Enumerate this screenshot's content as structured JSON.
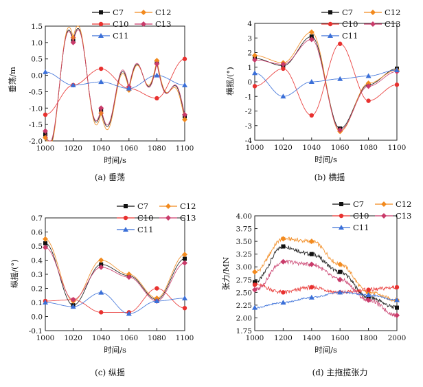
{
  "figure": {
    "captions": [
      "(a) 垂荡",
      "(b) 横摇",
      "(c) 纵摇",
      "(d) 主拖揽张力"
    ]
  },
  "series_styles": [
    {
      "name": "C7",
      "color": "#111111",
      "marker": "square"
    },
    {
      "name": "C12",
      "color": "#f28a1e",
      "marker": "diamond"
    },
    {
      "name": "C10",
      "color": "#e8312f",
      "marker": "circle"
    },
    {
      "name": "C13",
      "color": "#c93b6a",
      "marker": "diamond"
    },
    {
      "name": "C11",
      "color": "#3a6fd8",
      "marker": "triangle"
    }
  ],
  "chart_data": [
    {
      "type": "line",
      "caption": "(a) 垂荡",
      "xlabel": "时间/s",
      "ylabel": "垂荡/m",
      "xlim": [
        1000,
        1100
      ],
      "ylim": [
        -2.0,
        1.5
      ],
      "xticks": [
        1000,
        1020,
        1040,
        1060,
        1080,
        1100
      ],
      "yticks": [
        -2.0,
        -1.5,
        -1.0,
        -0.5,
        0.0,
        0.5,
        1.0,
        1.5
      ],
      "ytick_labels": [
        "-2.0",
        "-1.5",
        "-1.0",
        "-0.5",
        "0.0",
        "0.5",
        "1.0",
        "1.5"
      ],
      "legend": [
        "C7",
        "C12",
        "C10",
        "C13",
        "C11"
      ],
      "series": [
        {
          "name": "C7",
          "x": [
            1000,
            1020,
            1040,
            1060,
            1080,
            1100
          ],
          "values": [
            -1.8,
            1.05,
            -1.05,
            -0.4,
            0.4,
            -1.25
          ]
        },
        {
          "name": "C12",
          "x": [
            1000,
            1020,
            1040,
            1060,
            1080,
            1100
          ],
          "values": [
            -1.9,
            1.15,
            -1.15,
            -0.45,
            0.45,
            -1.35
          ]
        },
        {
          "name": "C10",
          "x": [
            1000,
            1020,
            1040,
            1060,
            1080,
            1100
          ],
          "values": [
            -1.2,
            -0.3,
            0.2,
            -0.4,
            -0.7,
            0.5
          ]
        },
        {
          "name": "C13",
          "x": [
            1000,
            1020,
            1040,
            1060,
            1080,
            1100
          ],
          "values": [
            -1.7,
            1.0,
            -1.0,
            -0.35,
            0.35,
            -1.2
          ]
        },
        {
          "name": "C11",
          "x": [
            1000,
            1020,
            1040,
            1060,
            1080,
            1100
          ],
          "values": [
            0.1,
            -0.3,
            -0.2,
            -0.4,
            0.0,
            -0.3
          ]
        }
      ]
    },
    {
      "type": "line",
      "caption": "(b) 横摇",
      "xlabel": "时间/s",
      "ylabel": "横摇/(°)",
      "xlim": [
        1000,
        1100
      ],
      "ylim": [
        -4,
        4
      ],
      "xticks": [
        1000,
        1020,
        1040,
        1060,
        1080,
        1100
      ],
      "yticks": [
        -4,
        -3,
        -2,
        -1,
        0,
        1,
        2,
        3,
        4
      ],
      "ytick_labels": [
        "-4",
        "-3",
        "-2",
        "-1",
        "0",
        "1",
        "2",
        "3",
        "4"
      ],
      "legend": [
        "C7",
        "C12",
        "C10",
        "C13",
        "C11"
      ],
      "series": [
        {
          "name": "C7",
          "x": [
            1000,
            1020,
            1040,
            1060,
            1080,
            1100
          ],
          "values": [
            1.6,
            1.1,
            3.1,
            -3.2,
            -0.2,
            0.9
          ]
        },
        {
          "name": "C12",
          "x": [
            1000,
            1020,
            1040,
            1060,
            1080,
            1100
          ],
          "values": [
            1.8,
            1.3,
            3.4,
            -3.4,
            -0.1,
            0.8
          ]
        },
        {
          "name": "C10",
          "x": [
            1000,
            1020,
            1040,
            1060,
            1080,
            1100
          ],
          "values": [
            -0.3,
            0.9,
            -2.3,
            2.6,
            -1.3,
            -0.2
          ]
        },
        {
          "name": "C13",
          "x": [
            1000,
            1020,
            1040,
            1060,
            1080,
            1100
          ],
          "values": [
            1.5,
            1.2,
            2.9,
            -3.3,
            -0.3,
            0.7
          ]
        },
        {
          "name": "C11",
          "x": [
            1000,
            1020,
            1040,
            1060,
            1080,
            1100
          ],
          "values": [
            0.6,
            -1.0,
            0.0,
            0.2,
            0.4,
            0.8
          ]
        }
      ]
    },
    {
      "type": "line",
      "caption": "(c) 纵摇",
      "xlabel": "时间/s",
      "ylabel": "纵摇/(°)",
      "xlim": [
        1000,
        1100
      ],
      "ylim": [
        -0.1,
        0.7
      ],
      "xticks": [
        1000,
        1020,
        1040,
        1060,
        1080,
        1100
      ],
      "yticks": [
        -0.1,
        0.0,
        0.1,
        0.2,
        0.3,
        0.4,
        0.5,
        0.6,
        0.7
      ],
      "ytick_labels": [
        "-0.1",
        "0.0",
        "0.1",
        "0.2",
        "0.3",
        "0.4",
        "0.5",
        "0.6",
        "0.7"
      ],
      "legend": [
        "C7",
        "C12",
        "C10",
        "C13",
        "C11"
      ],
      "series": [
        {
          "name": "C7",
          "x": [
            1000,
            1020,
            1040,
            1060,
            1080,
            1100
          ],
          "values": [
            0.52,
            0.08,
            0.37,
            0.29,
            0.12,
            0.41
          ]
        },
        {
          "name": "C12",
          "x": [
            1000,
            1020,
            1040,
            1060,
            1080,
            1100
          ],
          "values": [
            0.55,
            0.11,
            0.4,
            0.3,
            0.13,
            0.44
          ]
        },
        {
          "name": "C10",
          "x": [
            1000,
            1020,
            1040,
            1060,
            1080,
            1100
          ],
          "values": [
            0.11,
            0.12,
            0.03,
            0.03,
            0.2,
            0.06
          ]
        },
        {
          "name": "C13",
          "x": [
            1000,
            1020,
            1040,
            1060,
            1080,
            1100
          ],
          "values": [
            0.49,
            0.12,
            0.35,
            0.28,
            0.11,
            0.38
          ]
        },
        {
          "name": "C11",
          "x": [
            1000,
            1020,
            1040,
            1060,
            1080,
            1100
          ],
          "values": [
            0.1,
            0.07,
            0.17,
            0.02,
            0.11,
            0.13
          ]
        }
      ]
    },
    {
      "type": "line",
      "caption": "(d) 主拖揽张力",
      "xlabel": "时间/s",
      "ylabel": "张力/MN",
      "xlim": [
        1000,
        2000
      ],
      "ylim": [
        1.75,
        4.0
      ],
      "xticks": [
        1000,
        1200,
        1400,
        1600,
        1800,
        2000
      ],
      "yticks": [
        1.75,
        2.0,
        2.25,
        2.5,
        2.75,
        3.0,
        3.25,
        3.5,
        3.75,
        4.0
      ],
      "ytick_labels": [
        "1.75",
        "2.00",
        "2.25",
        "2.50",
        "2.75",
        "3.00",
        "3.25",
        "3.50",
        "3.75",
        "4.00"
      ],
      "legend": [
        "C7",
        "C12",
        "C10",
        "C13",
        "C11"
      ],
      "series": [
        {
          "name": "C7",
          "x": [
            1000,
            1200,
            1400,
            1600,
            1800,
            2000
          ],
          "values": [
            2.7,
            3.4,
            3.25,
            2.9,
            2.4,
            2.2
          ]
        },
        {
          "name": "C12",
          "x": [
            1000,
            1200,
            1400,
            1600,
            1800,
            2000
          ],
          "values": [
            2.9,
            3.55,
            3.5,
            3.05,
            2.5,
            2.35
          ]
        },
        {
          "name": "C10",
          "x": [
            1000,
            1200,
            1400,
            1600,
            1800,
            2000
          ],
          "values": [
            2.65,
            2.5,
            2.6,
            2.5,
            2.55,
            2.6
          ]
        },
        {
          "name": "C13",
          "x": [
            1000,
            1200,
            1400,
            1600,
            1800,
            2000
          ],
          "values": [
            2.55,
            3.1,
            3.05,
            2.75,
            2.35,
            2.05
          ]
        },
        {
          "name": "C11",
          "x": [
            1000,
            1200,
            1400,
            1600,
            1800,
            2000
          ],
          "values": [
            2.2,
            2.3,
            2.4,
            2.5,
            2.45,
            2.35
          ]
        }
      ]
    }
  ]
}
